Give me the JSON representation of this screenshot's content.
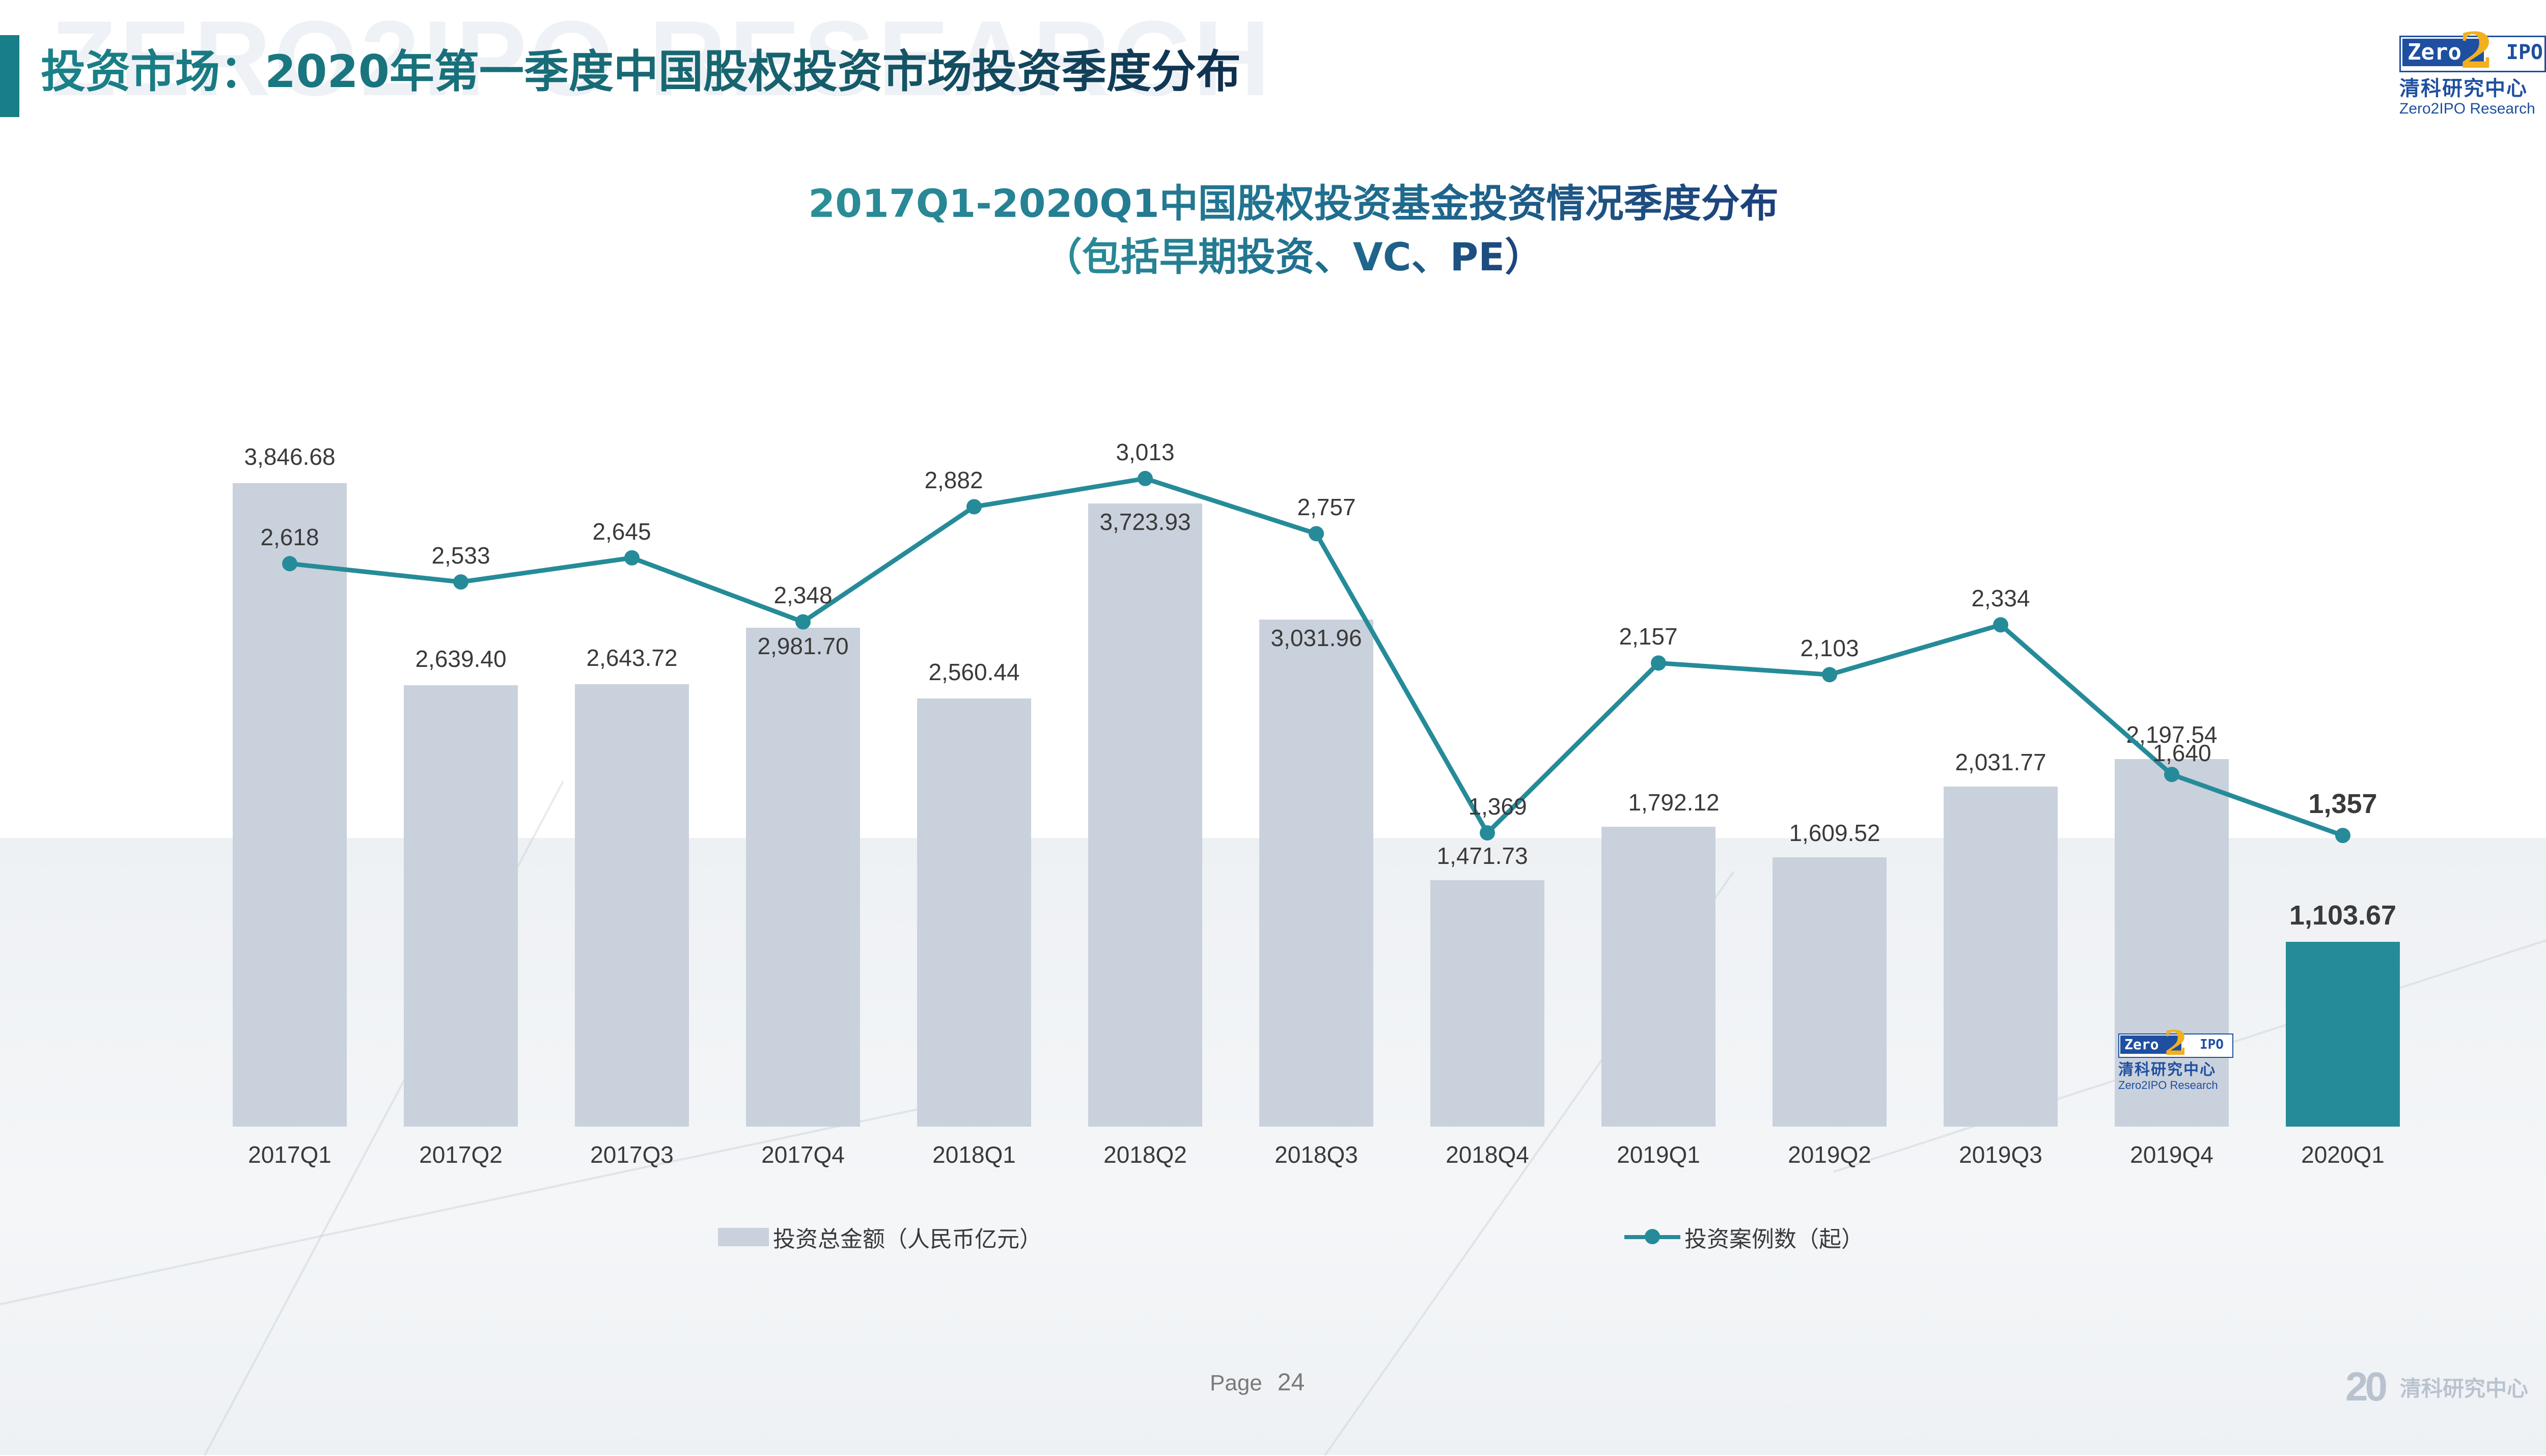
{
  "header": {
    "watermark": "ZERO2IPO RESEARCH",
    "title": "投资市场：2020年第一季度中国股权投资市场投资季度分布",
    "accent_color": "#187e87"
  },
  "logo": {
    "zero": "Zero",
    "two": "2",
    "ipo": "IPO",
    "cn": "清科研究中心",
    "en": "Zero2IPO Research"
  },
  "chart_data": {
    "type": "bar",
    "title": "2017Q1-2020Q1中国股权投资基金投资情况季度分布",
    "subtitle": "（包括早期投资、VC、PE）",
    "xlabel": "",
    "ylabel": "",
    "grid": false,
    "legend_position": "bottom",
    "categories": [
      "2017Q1",
      "2017Q2",
      "2017Q3",
      "2017Q4",
      "2018Q1",
      "2018Q2",
      "2018Q3",
      "2018Q4",
      "2019Q1",
      "2019Q2",
      "2019Q3",
      "2019Q4",
      "2020Q1"
    ],
    "series": [
      {
        "name": "投资总金额（人民币亿元）",
        "type": "bar",
        "color": "#c9d1dc",
        "highlight_color": "#268b99",
        "values": [
          3846.68,
          2639.4,
          2643.72,
          2981.7,
          2560.44,
          3723.93,
          3031.96,
          1471.73,
          1792.12,
          1609.52,
          2031.77,
          2197.54,
          1103.67
        ],
        "labels": [
          "3,846.68",
          "2,639.40",
          "2,643.72",
          "2,981.70",
          "2,560.44",
          "3,723.93",
          "3,031.96",
          "1,471.73",
          "1,792.12",
          "1,609.52",
          "2,031.77",
          "2,197.54",
          "1,103.67"
        ]
      },
      {
        "name": "投资案例数（起）",
        "type": "line",
        "color": "#268b99",
        "values": [
          2618,
          2533,
          2645,
          2348,
          2882,
          3013,
          2757,
          1369,
          2157,
          2103,
          2334,
          1640,
          1357
        ],
        "labels": [
          "2,618",
          "2,533",
          "2,645",
          "2,348",
          "2,882",
          "3,013",
          "2,757",
          "1,369",
          "2,157",
          "2,103",
          "2,334",
          "1,640",
          "1,357"
        ]
      }
    ]
  },
  "legend": {
    "bar": "投资总金额（人民币亿元）",
    "line": "投资案例数（起）"
  },
  "footer": {
    "page_label": "Page",
    "page_number": "24",
    "brand_20": "20",
    "brand_cn": "清科研究中心"
  }
}
